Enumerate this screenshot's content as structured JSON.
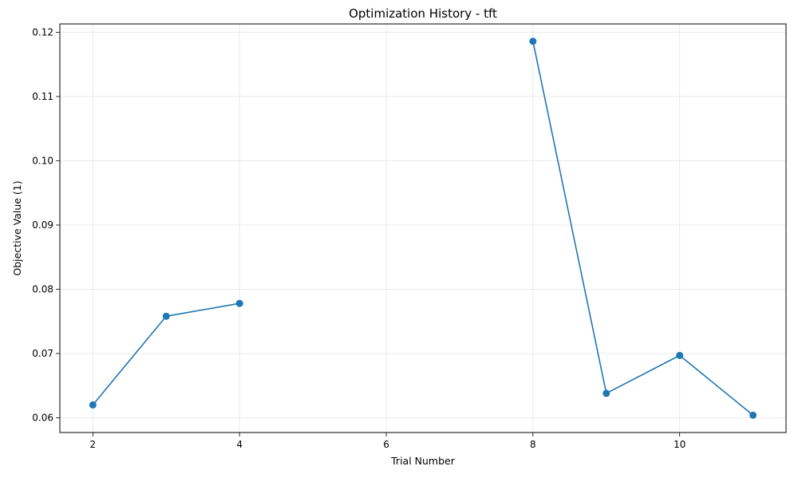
{
  "chart_data": {
    "type": "line",
    "title": "Optimization History - tft",
    "xlabel": "Trial Number",
    "ylabel": "Objective Value (1)",
    "x_ticks": [
      2,
      4,
      6,
      8,
      10
    ],
    "x_tick_labels": [
      "2",
      "4",
      "6",
      "8",
      "10"
    ],
    "y_ticks": [
      0.06,
      0.07,
      0.08,
      0.09,
      0.1,
      0.11,
      0.12
    ],
    "y_tick_labels": [
      "0.06",
      "0.07",
      "0.08",
      "0.09",
      "0.10",
      "0.11",
      "0.12"
    ],
    "xlim": [
      1.55,
      11.45
    ],
    "ylim": [
      0.0577,
      0.1213
    ],
    "grid": true,
    "series": [
      {
        "color": "#1f77b4",
        "marker": "circle",
        "segments": [
          {
            "x": [
              2,
              3,
              4
            ],
            "y": [
              0.062,
              0.0758,
              0.0778
            ]
          },
          {
            "x": [
              8,
              9,
              10,
              11
            ],
            "y": [
              0.1186,
              0.0638,
              0.0697,
              0.0604
            ]
          }
        ]
      }
    ]
  }
}
